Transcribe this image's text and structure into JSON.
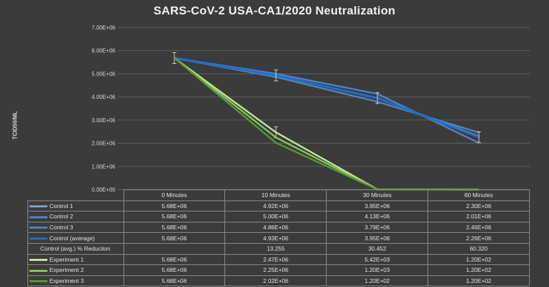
{
  "chart_data": {
    "type": "line",
    "title": "SARS-CoV-2 USA-CA1/2020 Neutralization",
    "ylabel": "TCID50/ML",
    "ylim": [
      0,
      7000000
    ],
    "yticks": [
      "0.00E+00",
      "1.00E+06",
      "2.00E+06",
      "3.00E+06",
      "4.00E+06",
      "5.00E+06",
      "6.00E+06",
      "7.00E+06"
    ],
    "categories": [
      "0 Minutes",
      "10 Minutes",
      "30 Minutes",
      "60 Minutes"
    ],
    "series": [
      {
        "name": "Control 1",
        "color": "#7f9fd0",
        "values": [
          5680000,
          4920000,
          3950000,
          2300000
        ],
        "labels": [
          "5.68E+06",
          "4.92E+06",
          "3.95E+06",
          "2.30E+06"
        ]
      },
      {
        "name": "Control 2",
        "color": "#5a7fc8",
        "values": [
          5680000,
          5000000,
          4130000,
          2010000
        ],
        "labels": [
          "5.68E+06",
          "5.00E+06",
          "4.13E+06",
          "2.01E+06"
        ]
      },
      {
        "name": "Control 3",
        "color": "#4a86c8",
        "values": [
          5680000,
          4860000,
          3790000,
          2460000
        ],
        "labels": [
          "5.68E+06",
          "4.86E+06",
          "3.79E+06",
          "2.46E+06"
        ]
      },
      {
        "name": "Control (average)",
        "color": "#1f6fc8",
        "values": [
          5680000,
          4930000,
          3950000,
          2260000
        ],
        "labels": [
          "5.68E+06",
          "4.93E+06",
          "3.95E+06",
          "2.26E+06"
        ],
        "error_bars": true
      },
      {
        "name": "Control (avg.) % Reduction",
        "table_only": true,
        "labels": [
          "",
          "13.255",
          "30.452",
          "60.320"
        ]
      },
      {
        "name": "Experiment 1",
        "color": "#c8e6a0",
        "values": [
          5680000,
          2470000,
          5420,
          120
        ],
        "labels": [
          "5.68E+06",
          "2.47E+06",
          "5.42E+03",
          "1.20E+02"
        ],
        "error_bars": true
      },
      {
        "name": "Experiment 2",
        "color": "#8cc85a",
        "values": [
          5680000,
          2250000,
          1200,
          120
        ],
        "labels": [
          "5.68E+06",
          "2.25E+06",
          "1.20E+03",
          "1.20E+02"
        ]
      },
      {
        "name": "Experiment 3",
        "color": "#5a9a32",
        "values": [
          5680000,
          2020000,
          120,
          120
        ],
        "labels": [
          "5.68E+06",
          "2.02E+06",
          "1.20E+02",
          "1.20E+02"
        ]
      }
    ],
    "grid": true,
    "legend": "data-table"
  }
}
